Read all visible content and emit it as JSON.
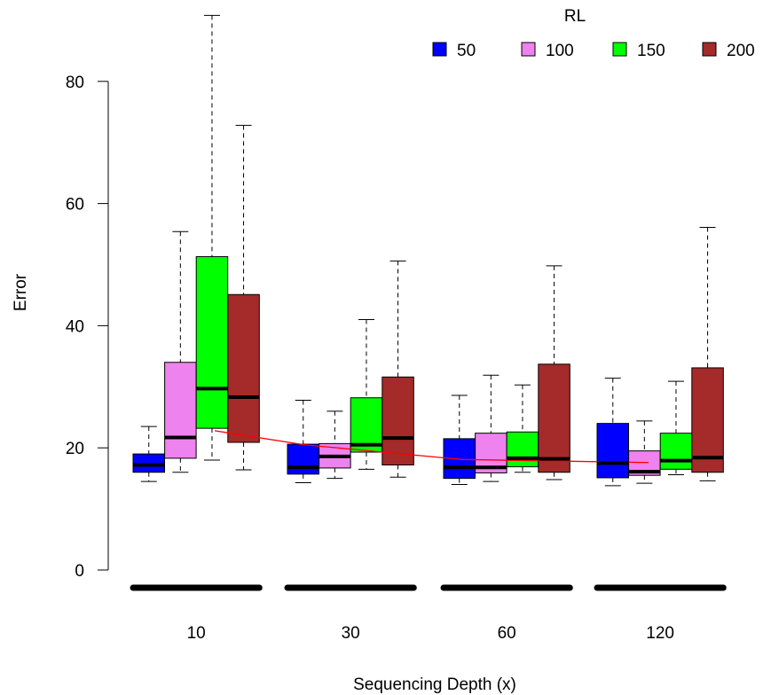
{
  "chart_data": {
    "type": "boxplot",
    "xlabel": "Sequencing Depth (x)",
    "ylabel": "Error",
    "ylim": [
      0,
      90
    ],
    "yticks": [
      0,
      20,
      40,
      60,
      80
    ],
    "categories": [
      "10",
      "30",
      "60",
      "120"
    ],
    "legend": {
      "title": "RL",
      "placement": "top-right"
    },
    "series": [
      {
        "name": "50",
        "color": "#0000ff",
        "boxes": [
          {
            "min": 14.5,
            "q1": 16.0,
            "median": 17.2,
            "q3": 19.0,
            "max": 23.5
          },
          {
            "min": 14.3,
            "q1": 15.7,
            "median": 16.8,
            "q3": 20.6,
            "max": 27.8
          },
          {
            "min": 14.0,
            "q1": 15.0,
            "median": 16.8,
            "q3": 21.5,
            "max": 28.6
          },
          {
            "min": 13.8,
            "q1": 15.1,
            "median": 17.5,
            "q3": 24.0,
            "max": 31.4
          }
        ]
      },
      {
        "name": "100",
        "color": "#ee82ee",
        "boxes": [
          {
            "min": 16.0,
            "q1": 18.3,
            "median": 21.7,
            "q3": 34.0,
            "max": 55.4
          },
          {
            "min": 15.0,
            "q1": 16.7,
            "median": 18.6,
            "q3": 20.7,
            "max": 26.0
          },
          {
            "min": 14.5,
            "q1": 15.9,
            "median": 16.8,
            "q3": 22.4,
            "max": 31.9
          },
          {
            "min": 14.2,
            "q1": 15.5,
            "median": 16.1,
            "q3": 19.5,
            "max": 24.4
          }
        ]
      },
      {
        "name": "150",
        "color": "#00ff00",
        "boxes": [
          {
            "min": 18.0,
            "q1": 23.2,
            "median": 29.7,
            "q3": 51.3,
            "max": 90.8
          },
          {
            "min": 16.5,
            "q1": 19.3,
            "median": 20.5,
            "q3": 28.2,
            "max": 41.0
          },
          {
            "min": 16.0,
            "q1": 16.9,
            "median": 18.3,
            "q3": 22.6,
            "max": 30.3
          },
          {
            "min": 15.6,
            "q1": 16.5,
            "median": 17.9,
            "q3": 22.4,
            "max": 30.9
          }
        ]
      },
      {
        "name": "200",
        "color": "#a52a2a",
        "boxes": [
          {
            "min": 16.4,
            "q1": 20.9,
            "median": 28.3,
            "q3": 45.1,
            "max": 72.8
          },
          {
            "min": 15.2,
            "q1": 17.2,
            "median": 21.6,
            "q3": 31.6,
            "max": 50.6
          },
          {
            "min": 14.8,
            "q1": 16.0,
            "median": 18.2,
            "q3": 33.7,
            "max": 49.8
          },
          {
            "min": 14.6,
            "q1": 16.0,
            "median": 18.4,
            "q3": 33.1,
            "max": 56.1
          }
        ]
      }
    ],
    "trend_line": {
      "color": "#ff0000",
      "values": [
        22.8,
        20.5,
        18.1,
        17.6
      ]
    }
  }
}
